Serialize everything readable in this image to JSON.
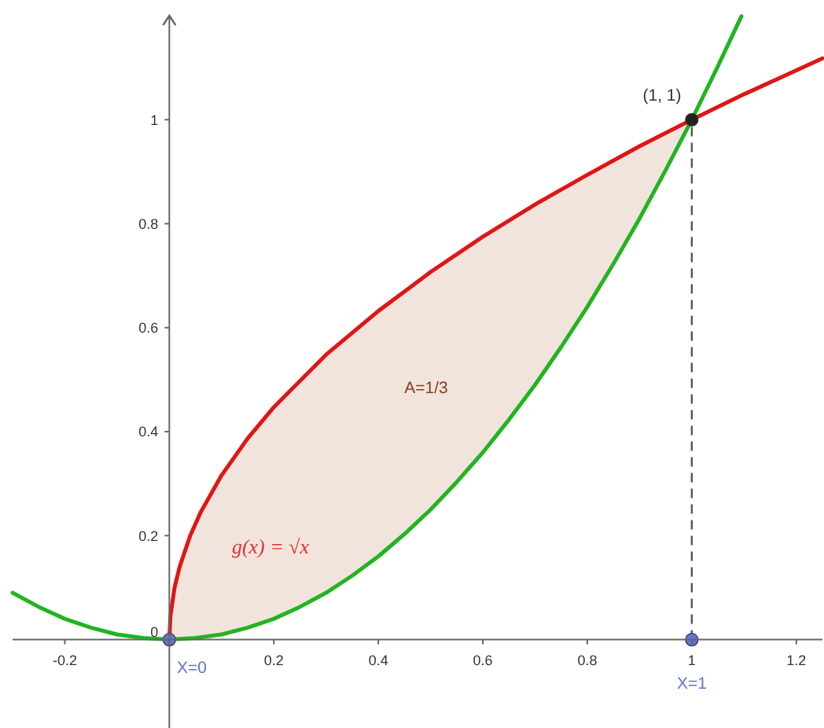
{
  "chart_data": {
    "type": "line",
    "xlim": [
      -0.3,
      1.25
    ],
    "ylim": [
      -0.17,
      1.2
    ],
    "xticks": [
      -0.2,
      {
        "value": 0,
        "label": null
      },
      0.2,
      0.4,
      0.6,
      0.8,
      1,
      1.2
    ],
    "yticks": [
      0,
      0.2,
      0.4,
      0.6,
      0.8,
      1
    ],
    "series": [
      {
        "color": "#22b422",
        "x": [
          -0.3,
          -0.25,
          -0.2,
          -0.15,
          -0.1,
          -0.05,
          0,
          0.05,
          0.1,
          0.15,
          0.2,
          0.25,
          0.3,
          0.35,
          0.4,
          0.45,
          0.5,
          0.55,
          0.6,
          0.65,
          0.7,
          0.75,
          0.8,
          0.85,
          0.9,
          0.95,
          1,
          1.05,
          1.095
        ],
        "values": [
          0.09,
          0.063,
          0.04,
          0.023,
          0.01,
          0.003,
          0,
          0.003,
          0.01,
          0.023,
          0.04,
          0.063,
          0.09,
          0.123,
          0.16,
          0.203,
          0.25,
          0.303,
          0.36,
          0.423,
          0.49,
          0.563,
          0.64,
          0.723,
          0.81,
          0.903,
          1,
          1.103,
          1.199
        ]
      },
      {
        "color": "#e01515",
        "x": [
          0,
          0.002,
          0.01,
          0.02,
          0.04,
          0.06,
          0.1,
          0.15,
          0.2,
          0.3,
          0.4,
          0.5,
          0.6,
          0.7,
          0.8,
          0.9,
          1,
          1.1,
          1.2,
          1.25
        ],
        "values": [
          0,
          0.045,
          0.1,
          0.141,
          0.2,
          0.245,
          0.316,
          0.387,
          0.447,
          0.548,
          0.632,
          0.707,
          0.775,
          0.837,
          0.894,
          0.949,
          1,
          1.049,
          1.095,
          1.118
        ],
        "lower": [
          0,
          0,
          0,
          0,
          0.002,
          0.004,
          0.01,
          0.023,
          0.04,
          0.09,
          0.16,
          0.25,
          0.36,
          0.49,
          0.64,
          0.81,
          1,
          null,
          null,
          null
        ],
        "upper": [
          0,
          0.045,
          0.1,
          0.141,
          0.2,
          0.245,
          0.316,
          0.387,
          0.447,
          0.548,
          0.632,
          0.707,
          0.775,
          0.837,
          0.894,
          0.949,
          1,
          null,
          null,
          null
        ]
      },
      {
        "type": "scatter",
        "marker": "circle",
        "x": [
          0,
          1,
          1
        ],
        "values": [
          0,
          0,
          1
        ],
        "colors": [
          "#6670dd",
          "#6670dd",
          "#222222"
        ]
      }
    ],
    "ref_lines": [
      {
        "axis": "x",
        "value": 1,
        "color": "#555555",
        "line_style": "dashed"
      }
    ],
    "annotations": [
      "(1, 1)",
      "A=1/3",
      "g(x) = √x",
      "X=0",
      "X=1"
    ]
  }
}
